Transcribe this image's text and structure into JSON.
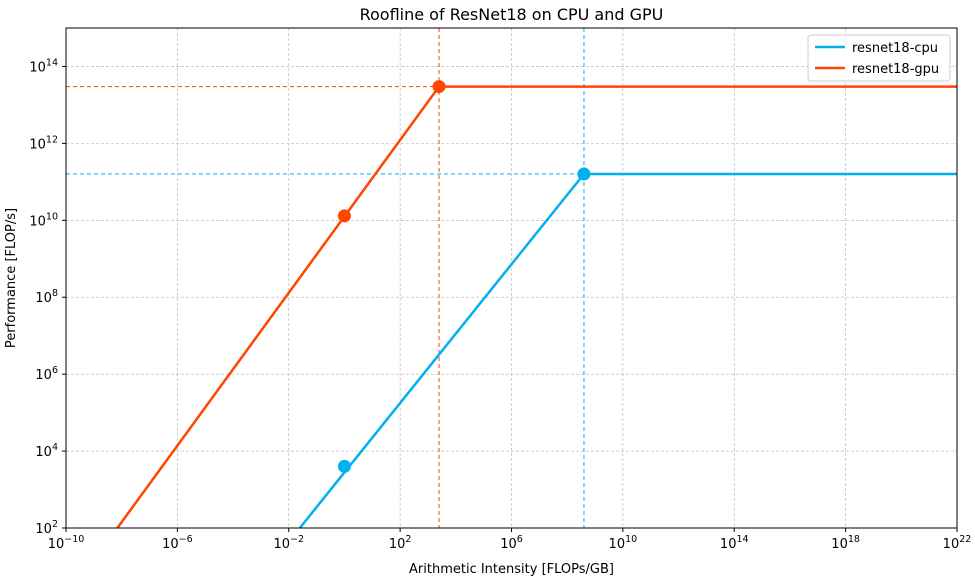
{
  "chart_data": {
    "type": "line",
    "title": "Roofline of ResNet18 on CPU and GPU",
    "xlabel": "Arithmetic Intensity [FLOPs/GB]",
    "ylabel": "Performance [FLOP/s]",
    "xscale": "log",
    "yscale": "log",
    "xlim": [
      1e-10,
      1e+22
    ],
    "ylim": [
      100,
      1000000000000000.0
    ],
    "x_ticks": [
      {
        "base": "10",
        "exp": "−10",
        "value": 1e-10
      },
      {
        "base": "10",
        "exp": "−6",
        "value": 1e-06
      },
      {
        "base": "10",
        "exp": "−2",
        "value": 0.01
      },
      {
        "base": "10",
        "exp": "2",
        "value": 100.0
      },
      {
        "base": "10",
        "exp": "6",
        "value": 1000000.0
      },
      {
        "base": "10",
        "exp": "10",
        "value": 10000000000.0
      },
      {
        "base": "10",
        "exp": "14",
        "value": 100000000000000.0
      },
      {
        "base": "10",
        "exp": "18",
        "value": 1e+18
      },
      {
        "base": "10",
        "exp": "22",
        "value": 1e+22
      }
    ],
    "y_ticks": [
      {
        "base": "10",
        "exp": "2",
        "value": 100.0
      },
      {
        "base": "10",
        "exp": "4",
        "value": 10000.0
      },
      {
        "base": "10",
        "exp": "6",
        "value": 1000000.0
      },
      {
        "base": "10",
        "exp": "8",
        "value": 100000000.0
      },
      {
        "base": "10",
        "exp": "10",
        "value": 10000000000.0
      },
      {
        "base": "10",
        "exp": "12",
        "value": 1000000000000.0
      },
      {
        "base": "10",
        "exp": "14",
        "value": 100000000000000.0
      }
    ],
    "grid": true,
    "legend_position": "top-right",
    "series": [
      {
        "name": "resnet18-cpu",
        "color": "#00b0f0",
        "line": [
          [
            0.025,
            100
          ],
          [
            400000000.0,
            160000000000.0
          ],
          [
            1e+22,
            160000000000.0
          ]
        ],
        "markers": [
          [
            1,
            4000.0
          ],
          [
            400000000.0,
            160000000000.0
          ]
        ],
        "ridge": [
          400000000.0,
          160000000000.0
        ]
      },
      {
        "name": "resnet18-gpu",
        "color": "#ff4500",
        "line": [
          [
            7e-09,
            100
          ],
          [
            2500.0,
            30000000000000.0
          ],
          [
            1e+22,
            30000000000000.0
          ]
        ],
        "markers": [
          [
            1,
            13000000000.0
          ],
          [
            2500.0,
            30000000000000.0
          ]
        ],
        "ridge": [
          2500.0,
          30000000000000.0
        ]
      }
    ]
  }
}
